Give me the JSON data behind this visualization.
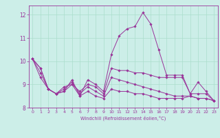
{
  "xlabel": "Windchill (Refroidissement éolien,°C)",
  "background_color": "#cceee8",
  "grid_color": "#aaddcc",
  "line_color": "#993399",
  "xlim": [
    -0.5,
    23.5
  ],
  "ylim": [
    8.0,
    12.4
  ],
  "yticks": [
    8,
    9,
    10,
    11,
    12
  ],
  "xticks": [
    0,
    1,
    2,
    3,
    4,
    5,
    6,
    7,
    8,
    9,
    10,
    11,
    12,
    13,
    14,
    15,
    16,
    17,
    18,
    19,
    20,
    21,
    22,
    23
  ],
  "series": [
    [
      10.1,
      9.7,
      8.8,
      8.6,
      8.7,
      9.2,
      8.5,
      9.2,
      9.0,
      8.7,
      10.3,
      11.1,
      11.4,
      11.5,
      12.1,
      11.6,
      10.5,
      9.4,
      9.4,
      9.4,
      8.6,
      9.1,
      8.7,
      8.3
    ],
    [
      10.1,
      9.7,
      8.8,
      8.6,
      8.7,
      9.0,
      8.7,
      9.0,
      8.9,
      8.6,
      9.7,
      9.6,
      9.6,
      9.5,
      9.5,
      9.4,
      9.3,
      9.3,
      9.3,
      9.3,
      8.6,
      8.6,
      8.6,
      8.3
    ],
    [
      10.1,
      9.5,
      8.8,
      8.6,
      8.8,
      9.1,
      8.6,
      8.9,
      8.7,
      8.5,
      9.3,
      9.2,
      9.1,
      9.0,
      8.9,
      8.8,
      8.7,
      8.6,
      8.5,
      8.5,
      8.5,
      8.4,
      8.4,
      8.3
    ],
    [
      10.1,
      9.3,
      8.8,
      8.6,
      8.9,
      9.0,
      8.5,
      8.7,
      8.5,
      8.4,
      8.8,
      8.7,
      8.7,
      8.6,
      8.6,
      8.5,
      8.4,
      8.4,
      8.4,
      8.4,
      8.5,
      8.4,
      8.4,
      8.3
    ]
  ]
}
